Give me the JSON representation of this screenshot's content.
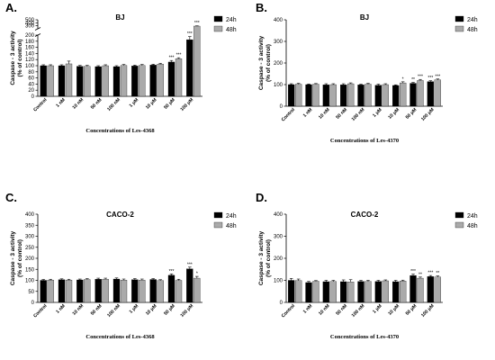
{
  "chart_data": [
    {
      "type": "bar",
      "letter": "A.",
      "title": "BJ",
      "xlabel": "Concentrations of Les-4368",
      "ylabel": [
        "Caspase - 3 activity",
        "(% of control)"
      ],
      "categories": [
        "Control",
        "1 nM",
        "10 nM",
        "50 nM",
        "100 nM",
        "1 μM",
        "10 μM",
        "50 μM",
        "100 μM"
      ],
      "series": [
        {
          "name": "24h",
          "color": "#000000",
          "values": [
            100,
            100,
            98,
            97,
            97,
            99,
            102,
            112,
            185
          ],
          "errors": [
            3,
            3,
            3,
            3,
            3,
            3,
            3,
            5,
            10
          ]
        },
        {
          "name": "48h",
          "color": "#aaaaaa",
          "values": [
            100,
            106,
            98,
            100,
            101,
            101,
            105,
            123,
            290
          ],
          "errors": [
            3,
            9,
            3,
            3,
            3,
            3,
            3,
            3,
            8
          ]
        }
      ],
      "significance": [
        {
          "series": 0,
          "index": 7,
          "label": "***"
        },
        {
          "series": 0,
          "index": 8,
          "label": "***"
        },
        {
          "series": 1,
          "index": 7,
          "label": "***"
        },
        {
          "series": 1,
          "index": 8,
          "label": "***"
        }
      ],
      "yaxis": {
        "broken": true,
        "lower": {
          "min": 0,
          "max": 200,
          "ticks": [
            0,
            20,
            40,
            60,
            80,
            100,
            120,
            140,
            160,
            180,
            200
          ]
        },
        "upper": {
          "min": 200,
          "max": 500,
          "ticks": [
            300,
            400,
            500
          ]
        }
      },
      "grid": false,
      "legend": "top-right"
    },
    {
      "type": "bar",
      "letter": "B.",
      "title": "BJ",
      "xlabel": "Concentrations of Les-4370",
      "ylabel": [
        "Caspase - 3 activity",
        "(% of control)"
      ],
      "categories": [
        "Control",
        "1 nM",
        "10 nM",
        "50 nM",
        "100 nM",
        "1 μM",
        "10 μM",
        "50 μM",
        "100 μM"
      ],
      "series": [
        {
          "name": "24h",
          "color": "#000000",
          "values": [
            100,
            100,
            99,
            99,
            99,
            97,
            96,
            106,
            114
          ],
          "errors": [
            4,
            3,
            5,
            5,
            3,
            5,
            3,
            4,
            4
          ]
        },
        {
          "name": "48h",
          "color": "#aaaaaa",
          "values": [
            102,
            102,
            100,
            104,
            102,
            100,
            108,
            119,
            122
          ],
          "errors": [
            4,
            3,
            4,
            4,
            4,
            4,
            5,
            5,
            4
          ]
        }
      ],
      "significance": [
        {
          "series": 1,
          "index": 6,
          "label": "*"
        },
        {
          "series": 0,
          "index": 7,
          "label": "**"
        },
        {
          "series": 1,
          "index": 7,
          "label": "***"
        },
        {
          "series": 0,
          "index": 8,
          "label": "***"
        },
        {
          "series": 1,
          "index": 8,
          "label": "***"
        }
      ],
      "yaxis": {
        "broken": false,
        "min": 0,
        "max": 400,
        "ticks": [
          0,
          100,
          200,
          300,
          400
        ]
      },
      "grid": false,
      "legend": "top-right"
    },
    {
      "type": "bar",
      "letter": "C.",
      "title": "CACO-2",
      "xlabel": "Concentrations of Les-4368",
      "ylabel": [
        "Caspase - 3 activity",
        "(% of control)"
      ],
      "categories": [
        "Control",
        "1 nM",
        "10 nM",
        "50 nM",
        "100 nM",
        "1 μM",
        "10 μM",
        "50 μM",
        "100 μM"
      ],
      "series": [
        {
          "name": "24h",
          "color": "#000000",
          "values": [
            100,
            103,
            102,
            105,
            106,
            103,
            104,
            123,
            152
          ],
          "errors": [
            4,
            4,
            4,
            5,
            5,
            5,
            4,
            6,
            8
          ]
        },
        {
          "name": "48h",
          "color": "#aaaaaa",
          "values": [
            101,
            101,
            104,
            105,
            101,
            101,
            99,
            100,
            110
          ],
          "errors": [
            4,
            4,
            4,
            5,
            5,
            5,
            4,
            5,
            8
          ]
        }
      ],
      "significance": [
        {
          "series": 0,
          "index": 7,
          "label": "***"
        },
        {
          "series": 0,
          "index": 8,
          "label": "***"
        },
        {
          "series": 1,
          "index": 8,
          "label": "*"
        }
      ],
      "yaxis": {
        "broken": false,
        "min": 0,
        "max": 400,
        "ticks": [
          0,
          50,
          100,
          150,
          200,
          250,
          300,
          350,
          400
        ]
      },
      "grid": false,
      "legend": "top-right"
    },
    {
      "type": "bar",
      "letter": "D.",
      "title": "CACO-2",
      "xlabel": "Concentrations of Les-4370",
      "ylabel": [
        "Caspase - 3 activity",
        "(% of control)"
      ],
      "categories": [
        "Control",
        "1 nM",
        "10 nM",
        "50 nM",
        "100 nM",
        "1 μM",
        "10 μM",
        "50 μM",
        "100 μM"
      ],
      "series": [
        {
          "name": "24h",
          "color": "#000000",
          "values": [
            100,
            90,
            94,
            94,
            95,
            95,
            94,
            122,
            117
          ],
          "errors": [
            9,
            5,
            6,
            8,
            5,
            5,
            6,
            6,
            5
          ]
        },
        {
          "name": "48h",
          "color": "#aaaaaa",
          "values": [
            99,
            96,
            95,
            93,
            95,
            98,
            97,
            110,
            115
          ],
          "errors": [
            7,
            3,
            5,
            10,
            5,
            4,
            4,
            5,
            5
          ]
        }
      ],
      "significance": [
        {
          "series": 0,
          "index": 7,
          "label": "***"
        },
        {
          "series": 1,
          "index": 7,
          "label": "**"
        },
        {
          "series": 0,
          "index": 8,
          "label": "***"
        },
        {
          "series": 1,
          "index": 8,
          "label": "**"
        }
      ],
      "yaxis": {
        "broken": false,
        "min": 0,
        "max": 400,
        "ticks": [
          0,
          100,
          200,
          300,
          400
        ]
      },
      "grid": false,
      "legend": "top-right"
    }
  ]
}
